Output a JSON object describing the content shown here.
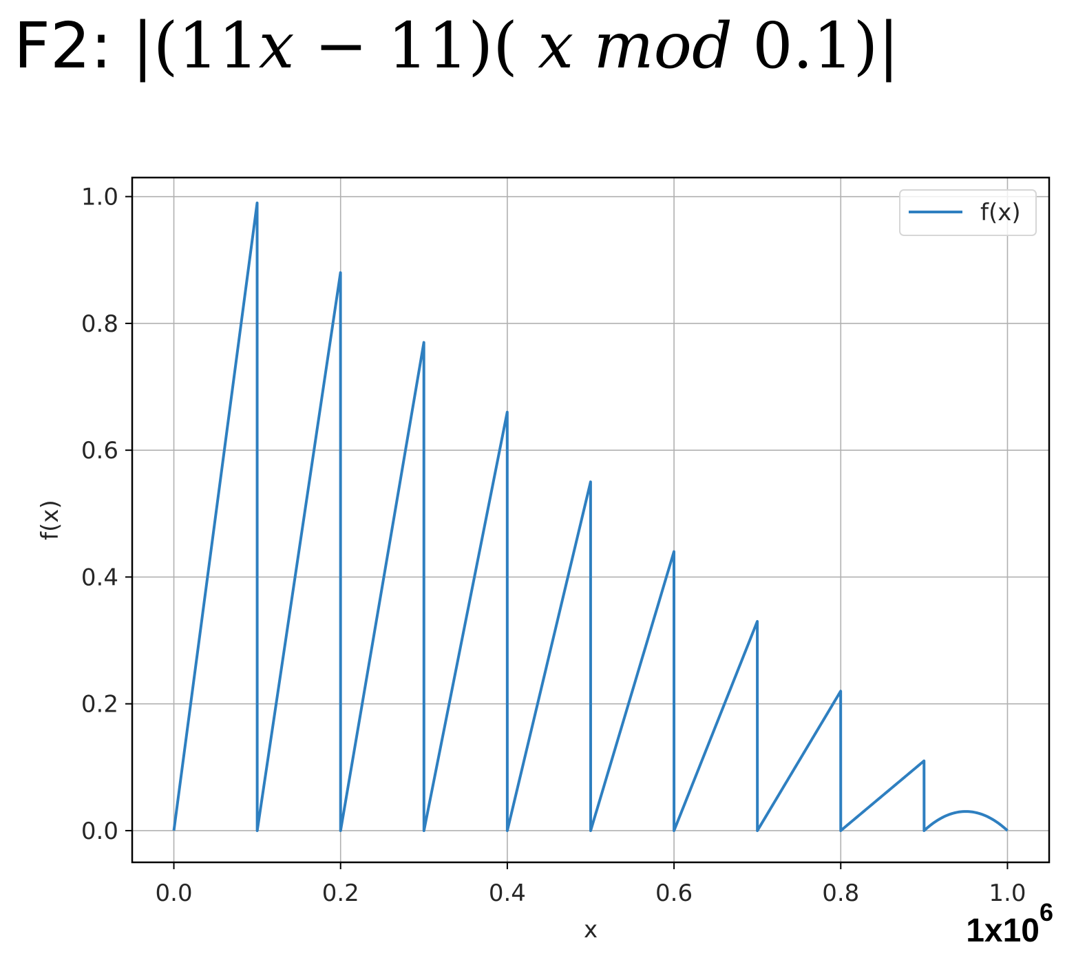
{
  "title": {
    "prefix": "F2: ",
    "parts": [
      "|(11",
      "x",
      " − 11)( ",
      "x mod",
      " 0.1)|"
    ]
  },
  "chart_data": {
    "type": "line",
    "title": "",
    "xlabel": "x",
    "ylabel": "f(x)",
    "xlim": [
      -0.05,
      1.05
    ],
    "ylim": [
      -0.05,
      1.03
    ],
    "xticks": [
      0.0,
      0.2,
      0.4,
      0.6,
      0.8,
      1.0
    ],
    "xtick_labels": [
      "0.0",
      "0.2",
      "0.4",
      "0.6",
      "0.8",
      "1.0"
    ],
    "yticks": [
      0.0,
      0.2,
      0.4,
      0.6,
      0.8,
      1.0
    ],
    "ytick_labels": [
      "0.0",
      "0.2",
      "0.4",
      "0.6",
      "0.8",
      "1.0"
    ],
    "x_scale_note_base": "1x10",
    "x_scale_note_exp": "6",
    "grid": true,
    "legend_position": "top-right",
    "series": [
      {
        "name": "f(x)",
        "color": "#2e7fc0",
        "x": [
          0.0,
          0.0999,
          0.1,
          0.1999,
          0.2,
          0.2999,
          0.3,
          0.3999,
          0.4,
          0.4999,
          0.5,
          0.5999,
          0.6,
          0.6999,
          0.7,
          0.7999,
          0.8,
          0.8999,
          0.9,
          1.0
        ],
        "y": [
          0.0,
          0.99,
          0.0,
          0.88,
          0.0,
          0.77,
          0.0,
          0.66,
          0.0,
          0.55,
          0.0,
          0.44,
          0.0,
          0.33,
          0.0,
          0.22,
          0.0,
          0.11,
          0.0,
          0.0
        ]
      }
    ]
  }
}
